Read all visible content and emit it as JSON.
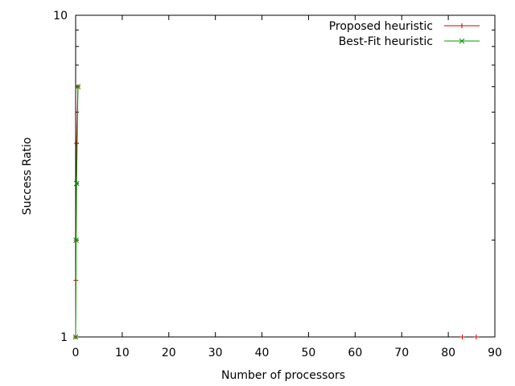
{
  "chart_data": {
    "type": "line",
    "title": "",
    "xlabel": "Number of processors",
    "ylabel": "Success Ratio",
    "xlim": [
      0,
      90
    ],
    "ylim": [
      1,
      10
    ],
    "yscale": "log",
    "grid": false,
    "legend_position": "top-right",
    "x_ticks": [
      0,
      10,
      20,
      30,
      40,
      50,
      60,
      70,
      80,
      90
    ],
    "x_tick_labels": [
      "0",
      "10",
      "20",
      "30",
      "40",
      "50",
      "60",
      "70",
      "80",
      "90"
    ],
    "y_ticks": [
      1,
      10
    ],
    "y_tick_labels": [
      "1",
      "10"
    ],
    "series": [
      {
        "name": "Proposed heuristic",
        "color": "#cc0000",
        "marker": "plus",
        "points": [
          [
            0,
            1
          ],
          [
            0.05,
            1.5
          ],
          [
            0.1,
            2
          ],
          [
            0.2,
            4
          ],
          [
            0.5,
            6
          ],
          [
            83,
            1
          ],
          [
            86,
            1
          ]
        ]
      },
      {
        "name": "Best-Fit heuristic",
        "color": "#009900",
        "marker": "cross",
        "points": [
          [
            0,
            1
          ],
          [
            0.1,
            2
          ],
          [
            0.2,
            3
          ],
          [
            0.5,
            6
          ]
        ]
      }
    ]
  }
}
